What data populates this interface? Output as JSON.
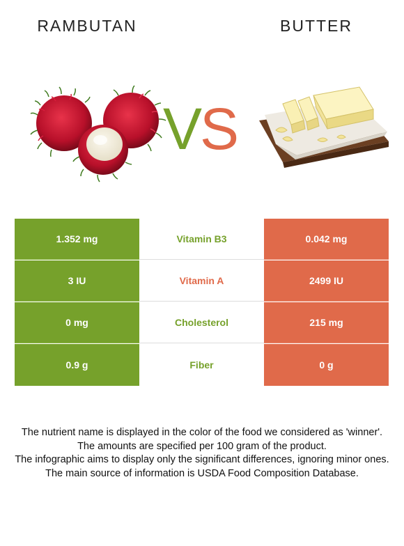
{
  "left_food": {
    "name": "RAMBUTAN",
    "image_icon": "rambutan-fruit-image"
  },
  "right_food": {
    "name": "BUTTER",
    "image_icon": "butter-block-image"
  },
  "vs": {
    "v": "V",
    "s": "S"
  },
  "colors": {
    "winner_left": "#76a12b",
    "winner_right": "#e06a4a"
  },
  "rows": [
    {
      "left": "1.352 mg",
      "nutrient": "Vitamin B3",
      "right": "0.042 mg",
      "winner": "left"
    },
    {
      "left": "3 IU",
      "nutrient": "Vitamin A",
      "right": "2499 IU",
      "winner": "right"
    },
    {
      "left": "0 mg",
      "nutrient": "Cholesterol",
      "right": "215 mg",
      "winner": "left"
    },
    {
      "left": "0.9 g",
      "nutrient": "Fiber",
      "right": "0 g",
      "winner": "left"
    }
  ],
  "footer": {
    "line1": "The nutrient name is displayed in the color of the food we considered as 'winner'.",
    "line2": "The amounts are specified per 100 gram of the product.",
    "line3": "The infographic aims to display only the significant differences, ignoring minor ones.",
    "line4": "The main source of information is USDA Food Composition Database."
  }
}
